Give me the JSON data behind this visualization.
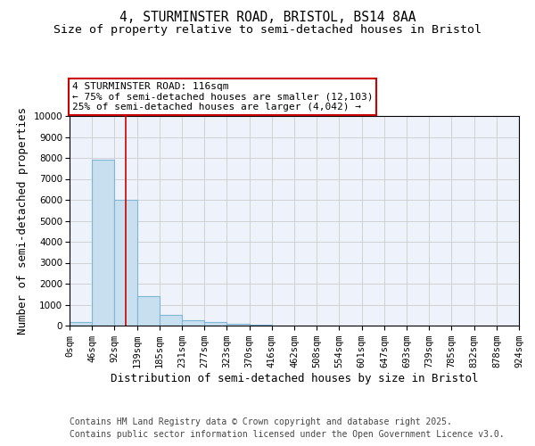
{
  "title_line1": "4, STURMINSTER ROAD, BRISTOL, BS14 8AA",
  "title_line2": "Size of property relative to semi-detached houses in Bristol",
  "xlabel": "Distribution of semi-detached houses by size in Bristol",
  "ylabel": "Number of semi-detached properties",
  "bar_values": [
    150,
    7900,
    6000,
    1400,
    500,
    250,
    150,
    100,
    50,
    0,
    0,
    0,
    0,
    0,
    0,
    0,
    0,
    0,
    0,
    0
  ],
  "bin_edges": [
    0,
    46,
    92,
    139,
    185,
    231,
    277,
    323,
    370,
    416,
    462,
    508,
    554,
    601,
    647,
    693,
    739,
    785,
    832,
    878,
    924
  ],
  "bar_color": "#c8dff0",
  "bar_edgecolor": "#7fb5d5",
  "bar_linewidth": 0.8,
  "red_line_x": 116,
  "annotation_title": "4 STURMINSTER ROAD: 116sqm",
  "annotation_line2": "← 75% of semi-detached houses are smaller (12,103)",
  "annotation_line3": "25% of semi-detached houses are larger (4,042) →",
  "annotation_box_color": "#ffffff",
  "annotation_box_edgecolor": "#cc0000",
  "ylim": [
    0,
    10000
  ],
  "yticks": [
    0,
    1000,
    2000,
    3000,
    4000,
    5000,
    6000,
    7000,
    8000,
    9000,
    10000
  ],
  "grid_color": "#cccccc",
  "background_color": "#eef2fa",
  "footer_line1": "Contains HM Land Registry data © Crown copyright and database right 2025.",
  "footer_line2": "Contains public sector information licensed under the Open Government Licence v3.0.",
  "title_fontsize": 10.5,
  "subtitle_fontsize": 9.5,
  "axis_label_fontsize": 9,
  "tick_fontsize": 7.5,
  "annotation_fontsize": 8,
  "footer_fontsize": 7
}
